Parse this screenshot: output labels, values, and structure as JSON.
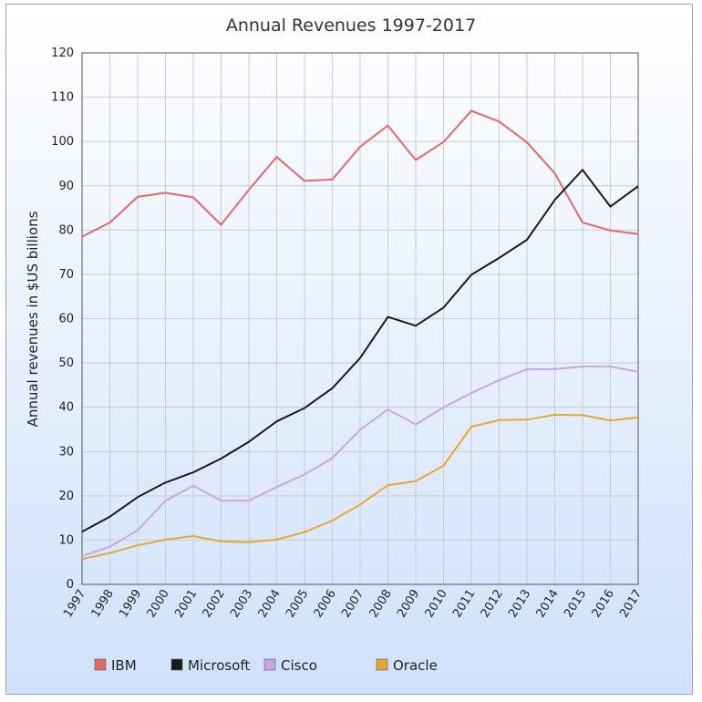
{
  "chart_data": {
    "type": "line",
    "title": "Annual Revenues 1997-2017",
    "xlabel": "",
    "ylabel": "Annual revenues in $US billions",
    "ylim": [
      0,
      120
    ],
    "yticks": [
      "0",
      "10",
      "20",
      "30",
      "40",
      "50",
      "60",
      "70",
      "80",
      "90",
      "100",
      "110",
      "120"
    ],
    "ytick_values": [
      0,
      10,
      20,
      30,
      40,
      50,
      60,
      70,
      80,
      90,
      100,
      110,
      120
    ],
    "categories": [
      "1997",
      "1998",
      "1999",
      "2000",
      "2001",
      "2002",
      "2003",
      "2004",
      "2005",
      "2006",
      "2007",
      "2008",
      "2009",
      "2010",
      "2011",
      "2012",
      "2013",
      "2014",
      "2015",
      "2016",
      "2017"
    ],
    "grid": true,
    "legend_position": "bottom",
    "series": [
      {
        "name": "IBM",
        "color": "#e8676b",
        "values": [
          78.5,
          81.7,
          87.5,
          88.4,
          87.4,
          81.2,
          89.1,
          96.5,
          91.1,
          91.4,
          98.8,
          103.6,
          95.8,
          99.9,
          106.9,
          104.5,
          99.8,
          92.8,
          81.7,
          79.9,
          79.1
        ]
      },
      {
        "name": "Microsoft",
        "color": "#1a1a1a",
        "values": [
          11.9,
          15.3,
          19.7,
          23.0,
          25.3,
          28.4,
          32.2,
          36.8,
          39.8,
          44.3,
          51.1,
          60.4,
          58.4,
          62.5,
          69.9,
          73.7,
          77.8,
          86.8,
          93.6,
          85.3,
          89.9
        ]
      },
      {
        "name": "Cisco",
        "color": "#c9a6e8",
        "values": [
          6.4,
          8.5,
          12.2,
          18.9,
          22.3,
          18.9,
          18.9,
          22.0,
          24.8,
          28.5,
          34.9,
          39.5,
          36.1,
          40.0,
          43.2,
          46.1,
          48.6,
          48.6,
          49.2,
          49.2,
          48.0
        ]
      },
      {
        "name": "Oracle",
        "color": "#eba630",
        "values": [
          5.7,
          7.1,
          8.8,
          10.1,
          10.9,
          9.7,
          9.5,
          10.1,
          11.8,
          14.4,
          18.0,
          22.4,
          23.3,
          26.8,
          35.6,
          37.1,
          37.2,
          38.3,
          38.2,
          37.0,
          37.7
        ]
      }
    ]
  }
}
